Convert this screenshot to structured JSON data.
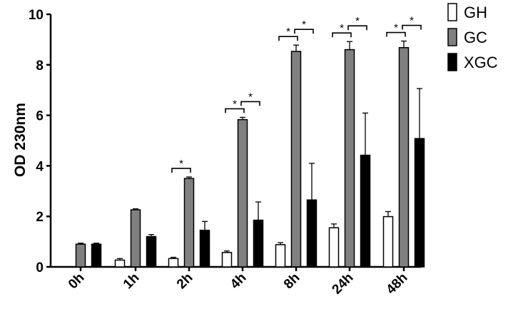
{
  "chart_data": {
    "type": "bar",
    "title": "",
    "xlabel": "",
    "ylabel": "OD 230nm",
    "ylim": [
      0,
      10
    ],
    "yticks": [
      "0",
      "2",
      "4",
      "6",
      "8",
      "10"
    ],
    "categories": [
      "0h",
      "1h",
      "2h",
      "4h",
      "8h",
      "24h",
      "48h"
    ],
    "series": [
      {
        "name": "GH",
        "color": "#ffffff",
        "values": [
          null,
          0.27,
          0.33,
          0.57,
          0.88,
          1.55,
          1.99
        ],
        "errors": [
          null,
          0.06,
          0.05,
          0.06,
          0.08,
          0.15,
          0.2
        ]
      },
      {
        "name": "GC",
        "color": "#808080",
        "values": [
          0.9,
          2.26,
          3.5,
          5.83,
          8.53,
          8.6,
          8.68
        ],
        "errors": [
          0.04,
          0.04,
          0.06,
          0.09,
          0.25,
          0.32,
          0.26
        ]
      },
      {
        "name": "XGC",
        "color": "#000000",
        "values": [
          0.9,
          1.2,
          1.45,
          1.85,
          2.65,
          4.42,
          5.08
        ],
        "errors": [
          0.04,
          0.08,
          0.35,
          0.72,
          1.45,
          1.67,
          1.98
        ]
      }
    ],
    "significance": [
      {
        "category": "2h",
        "pair": [
          "GH",
          "GC"
        ],
        "label": "*"
      },
      {
        "category": "4h",
        "pair": [
          "GH",
          "GC"
        ],
        "label": "*"
      },
      {
        "category": "4h",
        "pair": [
          "GC",
          "XGC"
        ],
        "label": "*"
      },
      {
        "category": "8h",
        "pair": [
          "GH",
          "GC"
        ],
        "label": "*"
      },
      {
        "category": "8h",
        "pair": [
          "GC",
          "XGC"
        ],
        "label": "*"
      },
      {
        "category": "24h",
        "pair": [
          "GH",
          "GC"
        ],
        "label": "*"
      },
      {
        "category": "24h",
        "pair": [
          "GC",
          "XGC"
        ],
        "label": "*"
      },
      {
        "category": "48h",
        "pair": [
          "GH",
          "GC"
        ],
        "label": "*"
      },
      {
        "category": "48h",
        "pair": [
          "GC",
          "XGC"
        ],
        "label": "*"
      }
    ],
    "legend": {
      "position": "top-right"
    },
    "grid": false
  }
}
